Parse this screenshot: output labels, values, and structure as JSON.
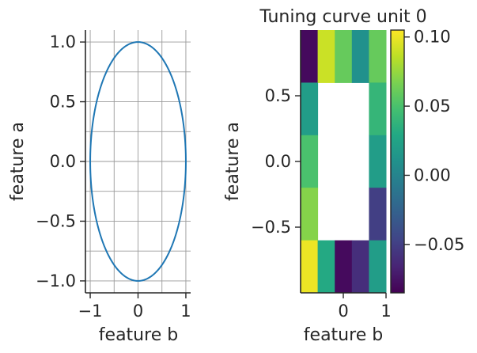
{
  "chart_data": [
    {
      "type": "line",
      "title": "",
      "xlabel": "feature b",
      "ylabel": "feature a",
      "xlim": [
        -1.1,
        1.1
      ],
      "ylim": [
        -1.1,
        1.1
      ],
      "xticks": [
        -1,
        0,
        1
      ],
      "xtick_labels": [
        "−1",
        "0",
        "1"
      ],
      "yticks": [
        -1.0,
        -0.5,
        0.0,
        0.5,
        1.0
      ],
      "ytick_labels": [
        "−1.0",
        "−0.5",
        "0.0",
        "0.5",
        "1.0"
      ],
      "grid": true,
      "series": [
        {
          "color": "#1f77b4",
          "x": [
            0.0,
            0.5,
            0.866,
            1.0,
            0.866,
            0.5,
            0.0,
            -0.5,
            -0.866,
            -1.0,
            -0.866,
            -0.5,
            0.0
          ],
          "y": [
            1.0,
            0.866,
            0.5,
            0.0,
            -0.5,
            -0.866,
            -1.0,
            -0.866,
            -0.5,
            0.0,
            0.5,
            0.866,
            1.0
          ]
        }
      ]
    },
    {
      "type": "heatmap",
      "title": "Tuning curve unit 0",
      "xlabel": "feature b",
      "ylabel": "feature a",
      "colormap": "viridis",
      "vmin": -0.085,
      "vmax": 0.105,
      "xticks": [
        0,
        1
      ],
      "xtick_labels": [
        "0",
        "1"
      ],
      "yticks": [
        0.5,
        0.0,
        -0.5
      ],
      "ytick_labels": [
        "0.5",
        "0.0",
        "−0.5"
      ],
      "xlim": [
        -1,
        1
      ],
      "ylim": [
        -1,
        1
      ],
      "grid": false,
      "rows": [
        [
          -0.08,
          0.09,
          0.06,
          0.01,
          0.06
        ],
        [
          0.02,
          null,
          null,
          null,
          0.04
        ],
        [
          0.05,
          null,
          null,
          null,
          0.02
        ],
        [
          0.07,
          null,
          null,
          null,
          -0.05
        ],
        [
          0.1,
          0.03,
          -0.08,
          -0.06,
          0.02
        ]
      ],
      "colorbar": {
        "ticks": [
          0.1,
          0.05,
          0.0,
          -0.05
        ],
        "tick_labels": [
          "0.10",
          "0.05",
          "0.00",
          "−0.05"
        ]
      }
    }
  ]
}
